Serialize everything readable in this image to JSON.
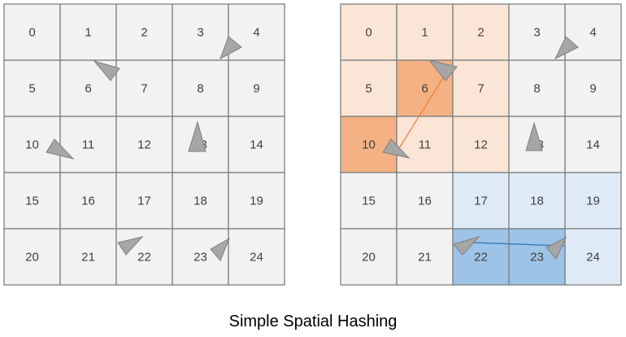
{
  "caption": "Simple Spatial Hashing",
  "colors": {
    "cell_default": "#f2f2f2",
    "cell_border": "#7f7f7f",
    "orange_light": "#fbe5d6",
    "orange_medium": "#f4b183",
    "orange_dark": "#f4b183",
    "blue_light": "#deebf7",
    "blue_medium": "#9dc3e6",
    "agent_fill": "#a6a6a6",
    "orange_line": "#ed7d31",
    "blue_line": "#2e75b6"
  },
  "grids": [
    {
      "name": "left-grid",
      "cells": [
        {
          "label": "0"
        },
        {
          "label": "1"
        },
        {
          "label": "2"
        },
        {
          "label": "3"
        },
        {
          "label": "4"
        },
        {
          "label": "5"
        },
        {
          "label": "6"
        },
        {
          "label": "7"
        },
        {
          "label": "8"
        },
        {
          "label": "9"
        },
        {
          "label": "10"
        },
        {
          "label": "11"
        },
        {
          "label": "12"
        },
        {
          "label": "13"
        },
        {
          "label": "14"
        },
        {
          "label": "15"
        },
        {
          "label": "16"
        },
        {
          "label": "17"
        },
        {
          "label": "18"
        },
        {
          "label": "19"
        },
        {
          "label": "20"
        },
        {
          "label": "21"
        },
        {
          "label": "22"
        },
        {
          "label": "23"
        },
        {
          "label": "24"
        }
      ]
    },
    {
      "name": "right-grid",
      "cells": [
        {
          "label": "0",
          "highlight": "orange_light"
        },
        {
          "label": "1",
          "highlight": "orange_light"
        },
        {
          "label": "2",
          "highlight": "orange_light"
        },
        {
          "label": "3"
        },
        {
          "label": "4"
        },
        {
          "label": "5",
          "highlight": "orange_light"
        },
        {
          "label": "6",
          "highlight": "orange_medium"
        },
        {
          "label": "7",
          "highlight": "orange_light"
        },
        {
          "label": "8"
        },
        {
          "label": "9"
        },
        {
          "label": "10",
          "highlight": "orange_dark"
        },
        {
          "label": "11",
          "highlight": "orange_light"
        },
        {
          "label": "12",
          "highlight": "orange_light"
        },
        {
          "label": "13"
        },
        {
          "label": "14"
        },
        {
          "label": "15"
        },
        {
          "label": "16"
        },
        {
          "label": "17",
          "highlight": "blue_light"
        },
        {
          "label": "18",
          "highlight": "blue_light"
        },
        {
          "label": "19",
          "highlight": "blue_light"
        },
        {
          "label": "20"
        },
        {
          "label": "21"
        },
        {
          "label": "22",
          "highlight": "blue_medium"
        },
        {
          "label": "23",
          "highlight": "blue_medium"
        },
        {
          "label": "24",
          "highlight": "blue_light"
        }
      ]
    }
  ]
}
